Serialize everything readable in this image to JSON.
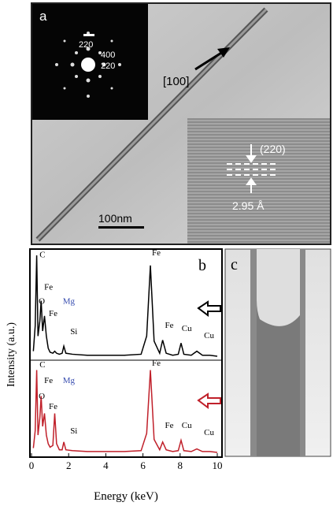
{
  "panel_a": {
    "label": "a",
    "diffraction": [
      "220",
      "400",
      "220"
    ],
    "direction": "[100]",
    "plane": "(220)",
    "spacing": "2.95 Å",
    "scale_bar": "100nm"
  },
  "panel_c": {
    "label": "c"
  },
  "chart_data": {
    "type": "line",
    "panel_label": "b",
    "ylabel": "Intensity (a.u.)",
    "xlabel": "Energy (keV)",
    "xlim": [
      0,
      10
    ],
    "xticks": [
      0,
      2,
      4,
      6,
      8,
      10
    ],
    "ylim": [
      0,
      100
    ],
    "x": [
      0.1,
      0.2,
      0.28,
      0.35,
      0.45,
      0.52,
      0.6,
      0.7,
      0.8,
      0.9,
      1.0,
      1.15,
      1.25,
      1.35,
      1.5,
      1.65,
      1.74,
      1.85,
      2.2,
      3,
      4,
      5,
      5.9,
      6.2,
      6.4,
      6.6,
      6.9,
      7.06,
      7.25,
      7.6,
      7.9,
      8.05,
      8.2,
      8.6,
      8.9,
      9.2,
      9.6,
      10
    ],
    "series": [
      {
        "color": "#000000",
        "values": [
          5,
          30,
          100,
          20,
          35,
          55,
          25,
          40,
          20,
          8,
          4,
          3,
          5,
          3,
          2,
          3,
          10,
          3,
          2,
          1,
          1,
          1,
          2,
          20,
          90,
          15,
          3,
          16,
          3,
          1,
          2,
          13,
          2,
          1,
          5,
          1,
          1,
          0
        ],
        "annotations": [
          {
            "text": "C",
            "x": 0.35,
            "y": 98,
            "color": "#000000"
          },
          {
            "text": "Fe",
            "x": 0.6,
            "y": 66,
            "color": "#000000"
          },
          {
            "text": "O",
            "x": 0.3,
            "y": 52,
            "color": "#000000"
          },
          {
            "text": "Fe",
            "x": 0.85,
            "y": 40,
            "color": "#000000"
          },
          {
            "text": "Mg",
            "x": 1.6,
            "y": 52,
            "color": "#3a4fb0"
          },
          {
            "text": "Si",
            "x": 2.0,
            "y": 22,
            "color": "#000000"
          },
          {
            "text": "Fe",
            "x": 6.4,
            "y": 100,
            "color": "#000000"
          },
          {
            "text": "Fe",
            "x": 7.1,
            "y": 28,
            "color": "#000000"
          },
          {
            "text": "Cu",
            "x": 8.0,
            "y": 25,
            "color": "#000000"
          },
          {
            "text": "Cu",
            "x": 9.2,
            "y": 18,
            "color": "#000000"
          }
        ]
      },
      {
        "color": "#c0202a",
        "values": [
          5,
          25,
          95,
          20,
          40,
          65,
          30,
          45,
          20,
          10,
          6,
          8,
          45,
          10,
          3,
          3,
          12,
          3,
          2,
          1,
          1,
          1,
          2,
          22,
          95,
          15,
          3,
          12,
          3,
          1,
          2,
          14,
          2,
          1,
          4,
          1,
          1,
          0
        ],
        "annotations": [
          {
            "text": "C",
            "x": 0.35,
            "y": 98,
            "color": "#000000"
          },
          {
            "text": "Fe",
            "x": 0.6,
            "y": 80,
            "color": "#000000"
          },
          {
            "text": "O",
            "x": 0.3,
            "y": 62,
            "color": "#000000"
          },
          {
            "text": "Fe",
            "x": 0.85,
            "y": 50,
            "color": "#000000"
          },
          {
            "text": "Mg",
            "x": 1.6,
            "y": 80,
            "color": "#3a4fb0"
          },
          {
            "text": "Si",
            "x": 2.0,
            "y": 22,
            "color": "#000000"
          },
          {
            "text": "Fe",
            "x": 6.4,
            "y": 100,
            "color": "#000000"
          },
          {
            "text": "Fe",
            "x": 7.1,
            "y": 28,
            "color": "#000000"
          },
          {
            "text": "Cu",
            "x": 8.0,
            "y": 28,
            "color": "#000000"
          },
          {
            "text": "Cu",
            "x": 9.2,
            "y": 20,
            "color": "#000000"
          }
        ]
      }
    ]
  }
}
